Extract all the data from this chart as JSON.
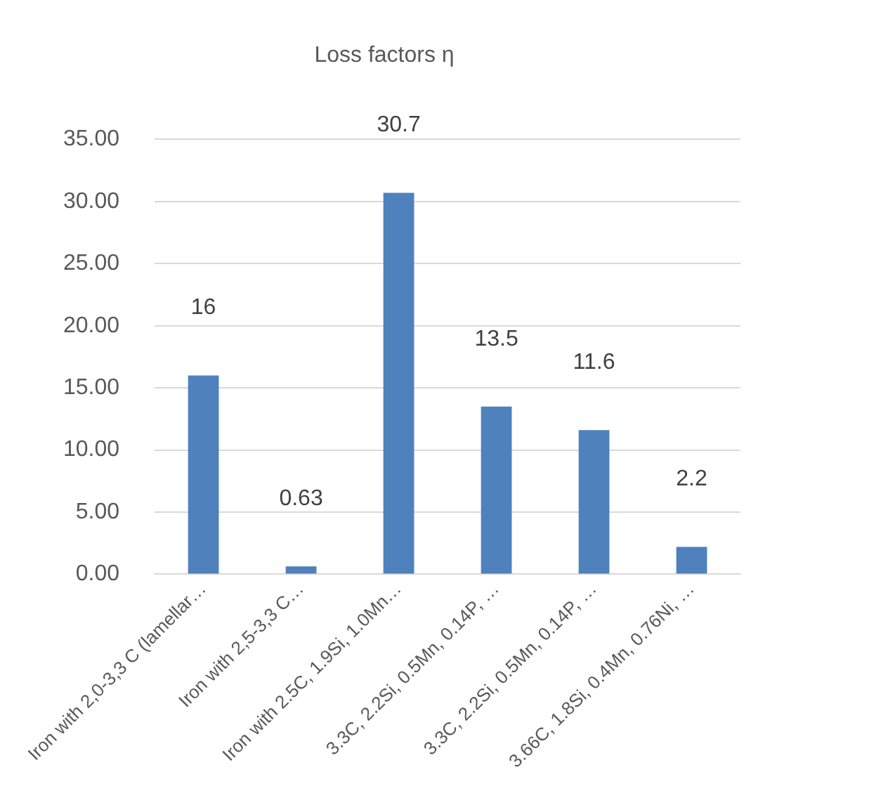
{
  "chart_data": {
    "type": "bar",
    "title": "Loss factors η",
    "categories": [
      "Iron with 2,0-3,3 C (lamellar…",
      "Iron with 2,5-3,3 C…",
      "Iron with 2.5C, 1.9Si, 1.0Mn…",
      "3.3C, 2.2Si, 0.5Mn, 0.14P, …",
      "3.3C, 2.2Si, 0.5Mn, 0.14P, …",
      "3.66C, 1.8Si, 0.4Mn, 0.76Ni, …"
    ],
    "values": [
      16,
      0.63,
      30.7,
      13.5,
      11.6,
      2.2
    ],
    "color": "#4f81bd",
    "ylim": [
      0,
      35
    ],
    "yticks": [
      {
        "value": 0,
        "label": "0.00"
      },
      {
        "value": 5,
        "label": "5.00"
      },
      {
        "value": 10,
        "label": "10.00"
      },
      {
        "value": 15,
        "label": "15.00"
      },
      {
        "value": 20,
        "label": "20.00"
      },
      {
        "value": 25,
        "label": "25.00"
      },
      {
        "value": 30,
        "label": "30.00"
      },
      {
        "value": 35,
        "label": "35.00"
      }
    ],
    "grid": "y",
    "data_labels": true
  }
}
